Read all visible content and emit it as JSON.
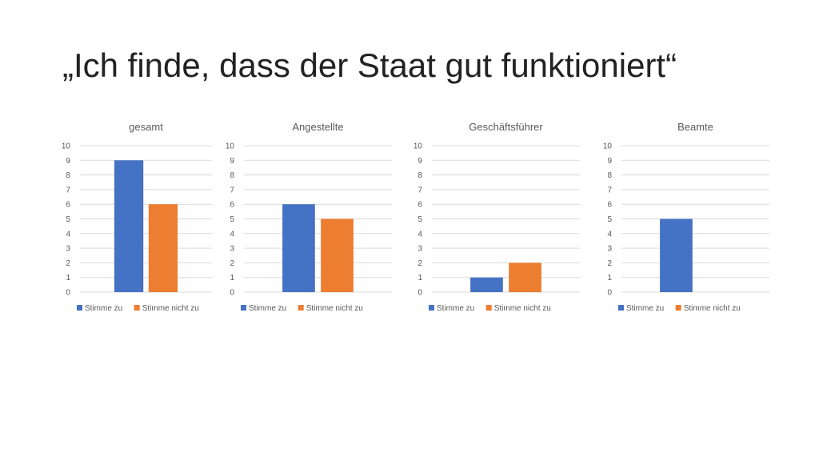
{
  "slide": {
    "title": "„Ich finde, dass der Staat gut funktioniert“"
  },
  "colors": {
    "stimme_zu": "#4472C4",
    "stimme_nicht_zu": "#ED7D31",
    "grid": "#D9D9D9",
    "axis_text": "#595959"
  },
  "chart_data": [
    {
      "type": "bar",
      "title": "gesamt",
      "categories": [
        ""
      ],
      "series": [
        {
          "name": "Stimme zu",
          "values": [
            9
          ]
        },
        {
          "name": "Stimme nicht zu",
          "values": [
            6
          ]
        }
      ],
      "ylim": [
        0,
        10
      ],
      "yticks": [
        0,
        1,
        2,
        3,
        4,
        5,
        6,
        7,
        8,
        9,
        10
      ],
      "grid": true,
      "legend": "bottom"
    },
    {
      "type": "bar",
      "title": "Angestellte",
      "categories": [
        ""
      ],
      "series": [
        {
          "name": "Stimme zu",
          "values": [
            6
          ]
        },
        {
          "name": "Stimme nicht zu",
          "values": [
            5
          ]
        }
      ],
      "ylim": [
        0,
        10
      ],
      "yticks": [
        0,
        1,
        2,
        3,
        4,
        5,
        6,
        7,
        8,
        9,
        10
      ],
      "grid": true,
      "legend": "bottom"
    },
    {
      "type": "bar",
      "title": "Geschäftsführer",
      "categories": [
        ""
      ],
      "series": [
        {
          "name": "Stimme zu",
          "values": [
            1
          ]
        },
        {
          "name": "Stimme nicht zu",
          "values": [
            2
          ]
        }
      ],
      "ylim": [
        0,
        10
      ],
      "yticks": [
        0,
        1,
        2,
        3,
        4,
        5,
        6,
        7,
        8,
        9,
        10
      ],
      "grid": true,
      "legend": "bottom"
    },
    {
      "type": "bar",
      "title": "Beamte",
      "categories": [
        ""
      ],
      "series": [
        {
          "name": "Stimme zu",
          "values": [
            5
          ]
        },
        {
          "name": "Stimme nicht zu",
          "values": [
            0
          ]
        }
      ],
      "ylim": [
        0,
        10
      ],
      "yticks": [
        0,
        1,
        2,
        3,
        4,
        5,
        6,
        7,
        8,
        9,
        10
      ],
      "grid": true,
      "legend": "bottom"
    }
  ]
}
